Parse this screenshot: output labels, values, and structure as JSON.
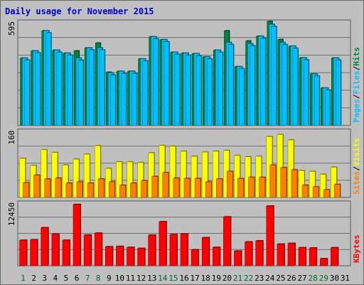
{
  "chart_data": {
    "title": "Daily usage for November 2015",
    "type": "bar",
    "categories": [
      "1",
      "2",
      "3",
      "4",
      "5",
      "6",
      "7",
      "8",
      "9",
      "10",
      "11",
      "12",
      "13",
      "14",
      "15",
      "16",
      "17",
      "18",
      "19",
      "20",
      "21",
      "22",
      "23",
      "24",
      "25",
      "26",
      "27",
      "28",
      "29",
      "30",
      "31"
    ],
    "weekend_days": [
      "1",
      "7",
      "8",
      "14",
      "15",
      "21",
      "22",
      "28",
      "29"
    ],
    "panels": [
      {
        "name": "hits-files-pages",
        "max_label": "595",
        "ylim": [
          0,
          595
        ],
        "legend": [
          "Pages",
          "Files",
          "Hits"
        ],
        "series": [
          {
            "name": "Hits",
            "color": "#008040",
            "values": [
              385,
              426,
              541,
              430,
              413,
              426,
              443,
              471,
              304,
              309,
              309,
              380,
              507,
              490,
              418,
              413,
              410,
              392,
              430,
              541,
              336,
              483,
              510,
              595,
              491,
              453,
              386,
              294,
              214,
              385,
              null
            ]
          },
          {
            "name": "Files",
            "color": "#00c0ff",
            "values": [
              385,
              426,
              541,
              430,
              413,
              385,
              443,
              443,
              300,
              309,
              309,
              380,
              507,
              490,
              418,
              413,
              410,
              392,
              430,
              474,
              336,
              467,
              510,
              578,
              474,
              453,
              386,
              294,
              214,
              385,
              null
            ]
          },
          {
            "name": "Pages",
            "color": "#00c0ff",
            "values": [
              373,
              414,
              529,
              418,
              401,
              373,
              431,
              431,
              288,
              297,
              297,
              368,
              495,
              478,
              406,
              401,
              398,
              380,
              418,
              462,
              324,
              455,
              498,
              566,
              462,
              441,
              374,
              282,
              202,
              373,
              null
            ]
          }
        ]
      },
      {
        "name": "visits-sites",
        "max_label": "160",
        "ylim": [
          0,
          160
        ],
        "legend": [
          "Sites",
          "Visits"
        ],
        "series": [
          {
            "name": "Visits",
            "color": "#ffff00",
            "values": [
              93,
              76,
              114,
              107,
              77,
              91,
              103,
              123,
              69,
              85,
              85,
              83,
              106,
              124,
              122,
              110,
              98,
              108,
              110,
              112,
              100,
              97,
              98,
              145,
              150,
              137,
              64,
              62,
              55,
              72,
              null
            ]
          },
          {
            "name": "Sites",
            "color": "#ff8000",
            "values": [
              35,
              53,
              44,
              46,
              34,
              37,
              34,
              44,
              37,
              29,
              34,
              40,
              50,
              59,
              46,
              45,
              45,
              37,
              44,
              62,
              45,
              48,
              48,
              77,
              71,
              66,
              29,
              25,
              18,
              31,
              null
            ]
          }
        ]
      },
      {
        "name": "kbytes",
        "max_label": "12450",
        "ylim": [
          0,
          12450
        ],
        "legend": [
          "KBytes"
        ],
        "series": [
          {
            "name": "KBytes",
            "color": "#ff0000",
            "values": [
              5008,
              5108,
              7474,
              6206,
              5008,
              12040,
              6030,
              6411,
              3738,
              3801,
              3611,
              3420,
              6016,
              8656,
              6120,
              6234,
              3140,
              5517,
              3611,
              9606,
              2885,
              4688,
              4900,
              11725,
              4260,
              4400,
              3547,
              3500,
              1398,
              3547,
              null
            ]
          }
        ]
      }
    ]
  },
  "colors": {
    "background": "#c0c0c0",
    "plot_background": "#c0c0c0",
    "title": "#0000cc",
    "weekday_label": "#000000",
    "weekend_label": "#006633"
  }
}
